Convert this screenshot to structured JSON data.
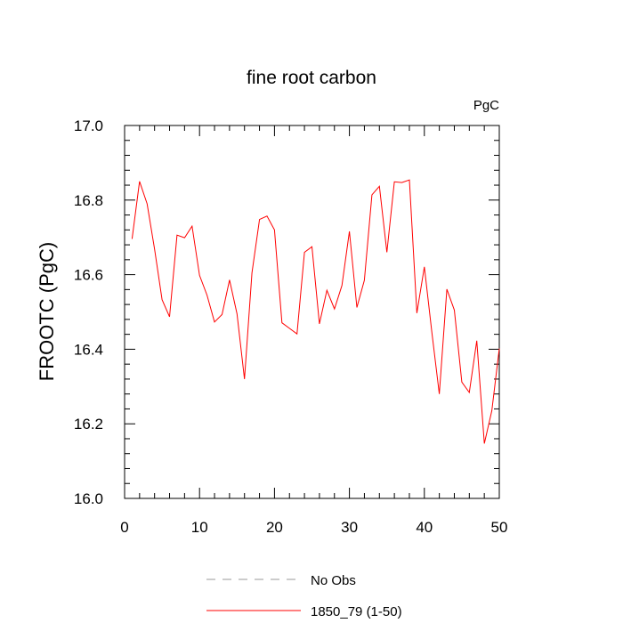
{
  "chart_data": {
    "type": "line",
    "title": "fine root carbon",
    "units_label": "PgC",
    "xlabel": "",
    "ylabel": "FROOTC  (PgC)",
    "xlim": [
      0,
      50
    ],
    "ylim": [
      16.0,
      17.0
    ],
    "xticks": [
      0,
      10,
      20,
      30,
      40,
      50
    ],
    "xtick_labels": [
      "0",
      "10",
      "20",
      "30",
      "40",
      "50"
    ],
    "yticks": [
      16.0,
      16.2,
      16.4,
      16.6,
      16.8,
      17.0
    ],
    "ytick_labels": [
      "16.0",
      "16.2",
      "16.4",
      "16.6",
      "16.8",
      "17.0"
    ],
    "grid": false,
    "legend_position": "bottom",
    "legend": [
      {
        "name": "No Obs",
        "color": "#999999",
        "style": "dashed"
      },
      {
        "name": "1850_79 (1-50)",
        "color": "#ff0000",
        "style": "solid"
      }
    ],
    "series": [
      {
        "name": "1850_79 (1-50)",
        "color": "#ff0000",
        "x": [
          1,
          2,
          3,
          4,
          5,
          6,
          7,
          8,
          9,
          10,
          11,
          12,
          13,
          14,
          15,
          16,
          17,
          18,
          19,
          20,
          21,
          22,
          23,
          24,
          25,
          26,
          27,
          28,
          29,
          30,
          31,
          32,
          33,
          34,
          35,
          36,
          37,
          38,
          39,
          40,
          41,
          42,
          43,
          44,
          45,
          46,
          47,
          48,
          49,
          50
        ],
        "values": [
          16.696,
          16.85,
          16.79,
          16.668,
          16.533,
          16.487,
          16.706,
          16.699,
          16.73,
          16.598,
          16.545,
          16.473,
          16.493,
          16.586,
          16.495,
          16.32,
          16.605,
          16.748,
          16.757,
          16.72,
          16.471,
          16.456,
          16.441,
          16.66,
          16.675,
          16.468,
          16.558,
          16.508,
          16.571,
          16.716,
          16.512,
          16.585,
          16.814,
          16.837,
          16.66,
          16.849,
          16.847,
          16.854,
          16.497,
          16.621,
          16.446,
          16.28,
          16.561,
          16.505,
          16.312,
          16.284,
          16.423,
          16.147,
          16.235,
          16.402
        ]
      }
    ]
  }
}
